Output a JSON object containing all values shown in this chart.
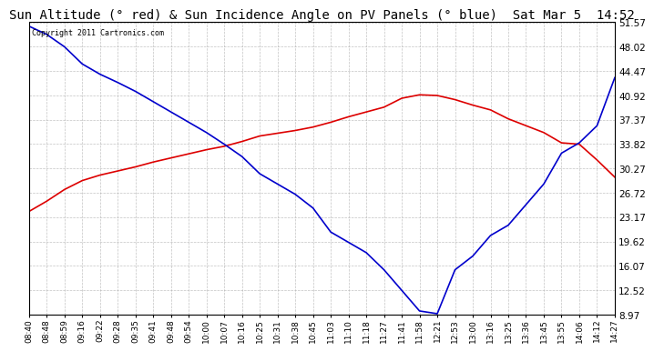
{
  "title": "Sun Altitude (° red) & Sun Incidence Angle on PV Panels (° blue)  Sat Mar 5  14:52",
  "copyright_text": "Copyright 2011 Cartronics.com",
  "yticks": [
    8.97,
    12.52,
    16.07,
    19.62,
    23.17,
    26.72,
    30.27,
    33.82,
    37.37,
    40.92,
    44.47,
    48.02,
    51.57
  ],
  "ymin": 8.97,
  "ymax": 51.57,
  "background_color": "#ffffff",
  "plot_bg_color": "#ffffff",
  "grid_color": "#aaaaaa",
  "red_color": "#dd0000",
  "blue_color": "#0000cc",
  "title_fontsize": 10,
  "xtick_labels": [
    "08:40",
    "08:48",
    "08:59",
    "09:16",
    "09:22",
    "09:28",
    "09:35",
    "09:41",
    "09:48",
    "09:54",
    "10:00",
    "10:07",
    "10:16",
    "10:25",
    "10:31",
    "10:38",
    "10:45",
    "11:03",
    "11:10",
    "11:18",
    "11:27",
    "11:41",
    "11:58",
    "12:21",
    "12:53",
    "13:00",
    "13:16",
    "13:25",
    "13:36",
    "13:45",
    "13:55",
    "14:06",
    "14:12",
    "14:27"
  ],
  "red_x": [
    0,
    1,
    2,
    3,
    4,
    5,
    6,
    7,
    8,
    9,
    10,
    11,
    12,
    13,
    14,
    15,
    16,
    17,
    18,
    19,
    20,
    21,
    22,
    23,
    24,
    25,
    26,
    27,
    28,
    29,
    30,
    31,
    32,
    33
  ],
  "red_y": [
    24.0,
    25.5,
    27.2,
    28.5,
    29.3,
    29.9,
    30.5,
    31.2,
    31.8,
    32.4,
    33.0,
    33.5,
    34.2,
    35.0,
    35.4,
    35.8,
    36.3,
    37.0,
    37.8,
    38.5,
    39.2,
    40.5,
    41.0,
    40.9,
    40.3,
    39.5,
    38.8,
    37.5,
    36.5,
    35.5,
    34.0,
    33.8,
    31.5,
    29.0
  ],
  "blue_x": [
    0,
    1,
    2,
    3,
    4,
    5,
    6,
    7,
    8,
    9,
    10,
    11,
    12,
    13,
    14,
    15,
    16,
    17,
    18,
    19,
    20,
    21,
    22,
    23,
    24,
    25,
    26,
    27,
    28,
    29,
    30,
    31,
    32,
    33
  ],
  "blue_y": [
    51.0,
    49.8,
    48.0,
    45.5,
    44.0,
    42.8,
    41.5,
    40.0,
    38.5,
    37.0,
    35.5,
    33.8,
    32.0,
    29.5,
    28.0,
    26.5,
    24.5,
    21.0,
    19.5,
    18.0,
    15.5,
    12.5,
    9.5,
    9.1,
    15.5,
    17.5,
    20.5,
    22.0,
    25.0,
    28.0,
    32.5,
    34.0,
    36.5,
    43.5
  ]
}
